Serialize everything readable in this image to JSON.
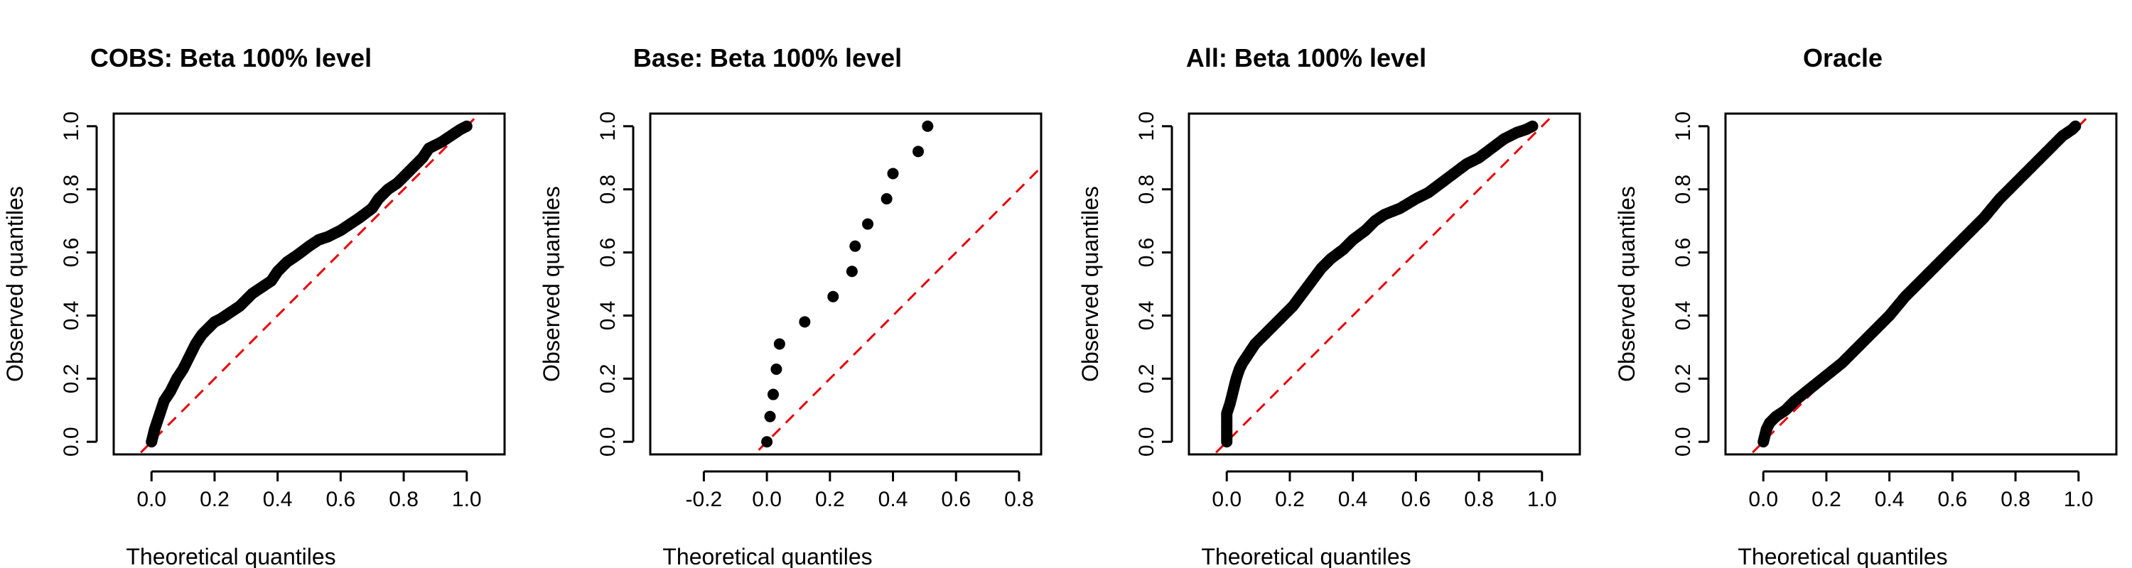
{
  "chart_data": [
    {
      "type": "scatter",
      "title": "COBS: Beta 100% level",
      "xlabel": "Theoretical quantiles",
      "ylabel": "Observed quantiles",
      "xlim": [
        -0.12,
        1.12
      ],
      "ylim": [
        -0.04,
        1.04
      ],
      "xticks": [
        0.0,
        0.2,
        0.4,
        0.6,
        0.8,
        1.0
      ],
      "xtick_labels": [
        "0.0",
        "0.2",
        "0.4",
        "0.6",
        "0.8",
        "1.0"
      ],
      "yticks": [
        0.0,
        0.2,
        0.4,
        0.6,
        0.8,
        1.0
      ],
      "ytick_labels": [
        "0.0",
        "0.2",
        "0.4",
        "0.6",
        "0.8",
        "1.0"
      ],
      "reference_line": {
        "style": "dashed",
        "color": "#e8000b",
        "intercept": 0,
        "slope": 1
      },
      "curve_points": [
        [
          0,
          0
        ],
        [
          0.005,
          0.02
        ],
        [
          0.01,
          0.04
        ],
        [
          0.02,
          0.07
        ],
        [
          0.03,
          0.1
        ],
        [
          0.04,
          0.13
        ],
        [
          0.06,
          0.16
        ],
        [
          0.08,
          0.2
        ],
        [
          0.1,
          0.23
        ],
        [
          0.12,
          0.27
        ],
        [
          0.14,
          0.31
        ],
        [
          0.16,
          0.34
        ],
        [
          0.18,
          0.36
        ],
        [
          0.2,
          0.38
        ],
        [
          0.22,
          0.39
        ],
        [
          0.25,
          0.41
        ],
        [
          0.28,
          0.43
        ],
        [
          0.3,
          0.45
        ],
        [
          0.32,
          0.47
        ],
        [
          0.35,
          0.49
        ],
        [
          0.38,
          0.51
        ],
        [
          0.4,
          0.54
        ],
        [
          0.43,
          0.57
        ],
        [
          0.46,
          0.59
        ],
        [
          0.5,
          0.62
        ],
        [
          0.53,
          0.64
        ],
        [
          0.56,
          0.65
        ],
        [
          0.6,
          0.67
        ],
        [
          0.63,
          0.69
        ],
        [
          0.66,
          0.71
        ],
        [
          0.7,
          0.74
        ],
        [
          0.72,
          0.77
        ],
        [
          0.75,
          0.8
        ],
        [
          0.78,
          0.82
        ],
        [
          0.8,
          0.84
        ],
        [
          0.83,
          0.87
        ],
        [
          0.86,
          0.9
        ],
        [
          0.88,
          0.93
        ],
        [
          0.92,
          0.95
        ],
        [
          0.95,
          0.97
        ],
        [
          0.98,
          0.99
        ],
        [
          1.0,
          1.0
        ]
      ]
    },
    {
      "type": "scatter",
      "title": "Base: Beta 100% level",
      "xlabel": "Theoretical quantiles",
      "ylabel": "Observed quantiles",
      "xlim": [
        -0.37,
        0.87
      ],
      "ylim": [
        -0.04,
        1.04
      ],
      "xticks": [
        -0.2,
        0.0,
        0.2,
        0.4,
        0.6,
        0.8
      ],
      "xtick_labels": [
        "-0.2",
        "0.0",
        "0.2",
        "0.4",
        "0.6",
        "0.8"
      ],
      "yticks": [
        0.0,
        0.2,
        0.4,
        0.6,
        0.8,
        1.0
      ],
      "ytick_labels": [
        "0.0",
        "0.2",
        "0.4",
        "0.6",
        "0.8",
        "1.0"
      ],
      "reference_line": {
        "style": "dashed",
        "color": "#e8000b",
        "intercept": 0,
        "slope": 1
      },
      "x": [
        0.0,
        0.01,
        0.02,
        0.03,
        0.04,
        0.12,
        0.21,
        0.27,
        0.28,
        0.32,
        0.38,
        0.4,
        0.48,
        0.51
      ],
      "y": [
        0.0,
        0.08,
        0.15,
        0.23,
        0.31,
        0.38,
        0.46,
        0.54,
        0.62,
        0.69,
        0.77,
        0.85,
        0.92,
        1.0
      ]
    },
    {
      "type": "scatter",
      "title": "All: Beta 100% level",
      "xlabel": "Theoretical quantiles",
      "ylabel": "Observed quantiles",
      "xlim": [
        -0.12,
        1.12
      ],
      "ylim": [
        -0.04,
        1.04
      ],
      "xticks": [
        0.0,
        0.2,
        0.4,
        0.6,
        0.8,
        1.0
      ],
      "xtick_labels": [
        "0.0",
        "0.2",
        "0.4",
        "0.6",
        "0.8",
        "1.0"
      ],
      "yticks": [
        0.0,
        0.2,
        0.4,
        0.6,
        0.8,
        1.0
      ],
      "ytick_labels": [
        "0.0",
        "0.2",
        "0.4",
        "0.6",
        "0.8",
        "1.0"
      ],
      "reference_line": {
        "style": "dashed",
        "color": "#e8000b",
        "intercept": 0,
        "slope": 1
      },
      "curve_points": [
        [
          0,
          0
        ],
        [
          0,
          0.03
        ],
        [
          0,
          0.06
        ],
        [
          0,
          0.09
        ],
        [
          0.01,
          0.12
        ],
        [
          0.02,
          0.16
        ],
        [
          0.03,
          0.2
        ],
        [
          0.04,
          0.23
        ],
        [
          0.05,
          0.25
        ],
        [
          0.07,
          0.28
        ],
        [
          0.09,
          0.31
        ],
        [
          0.12,
          0.34
        ],
        [
          0.15,
          0.37
        ],
        [
          0.18,
          0.4
        ],
        [
          0.21,
          0.43
        ],
        [
          0.24,
          0.47
        ],
        [
          0.27,
          0.51
        ],
        [
          0.3,
          0.55
        ],
        [
          0.33,
          0.58
        ],
        [
          0.37,
          0.61
        ],
        [
          0.4,
          0.64
        ],
        [
          0.44,
          0.67
        ],
        [
          0.47,
          0.7
        ],
        [
          0.5,
          0.72
        ],
        [
          0.55,
          0.74
        ],
        [
          0.6,
          0.77
        ],
        [
          0.64,
          0.79
        ],
        [
          0.68,
          0.82
        ],
        [
          0.72,
          0.85
        ],
        [
          0.76,
          0.88
        ],
        [
          0.8,
          0.9
        ],
        [
          0.84,
          0.93
        ],
        [
          0.88,
          0.96
        ],
        [
          0.92,
          0.98
        ],
        [
          0.95,
          0.99
        ],
        [
          0.97,
          1.0
        ]
      ]
    },
    {
      "type": "scatter",
      "title": "Oracle",
      "xlabel": "Theoretical quantiles",
      "ylabel": "Observed quantiles",
      "xlim": [
        -0.12,
        1.12
      ],
      "ylim": [
        -0.04,
        1.04
      ],
      "xticks": [
        0.0,
        0.2,
        0.4,
        0.6,
        0.8,
        1.0
      ],
      "xtick_labels": [
        "0.0",
        "0.2",
        "0.4",
        "0.6",
        "0.8",
        "1.0"
      ],
      "yticks": [
        0.0,
        0.2,
        0.4,
        0.6,
        0.8,
        1.0
      ],
      "ytick_labels": [
        "0.0",
        "0.2",
        "0.4",
        "0.6",
        "0.8",
        "1.0"
      ],
      "reference_line": {
        "style": "dashed",
        "color": "#e8000b",
        "intercept": 0,
        "slope": 1
      },
      "curve_points": [
        [
          0,
          0
        ],
        [
          0.005,
          0.02
        ],
        [
          0.01,
          0.04
        ],
        [
          0.02,
          0.06
        ],
        [
          0.04,
          0.08
        ],
        [
          0.07,
          0.1
        ],
        [
          0.1,
          0.13
        ],
        [
          0.15,
          0.17
        ],
        [
          0.2,
          0.21
        ],
        [
          0.25,
          0.25
        ],
        [
          0.3,
          0.3
        ],
        [
          0.35,
          0.35
        ],
        [
          0.4,
          0.4
        ],
        [
          0.45,
          0.46
        ],
        [
          0.5,
          0.51
        ],
        [
          0.55,
          0.56
        ],
        [
          0.6,
          0.61
        ],
        [
          0.65,
          0.66
        ],
        [
          0.7,
          0.71
        ],
        [
          0.75,
          0.77
        ],
        [
          0.8,
          0.82
        ],
        [
          0.85,
          0.87
        ],
        [
          0.9,
          0.92
        ],
        [
          0.95,
          0.97
        ],
        [
          0.98,
          0.99
        ],
        [
          0.99,
          1.0
        ]
      ]
    }
  ]
}
